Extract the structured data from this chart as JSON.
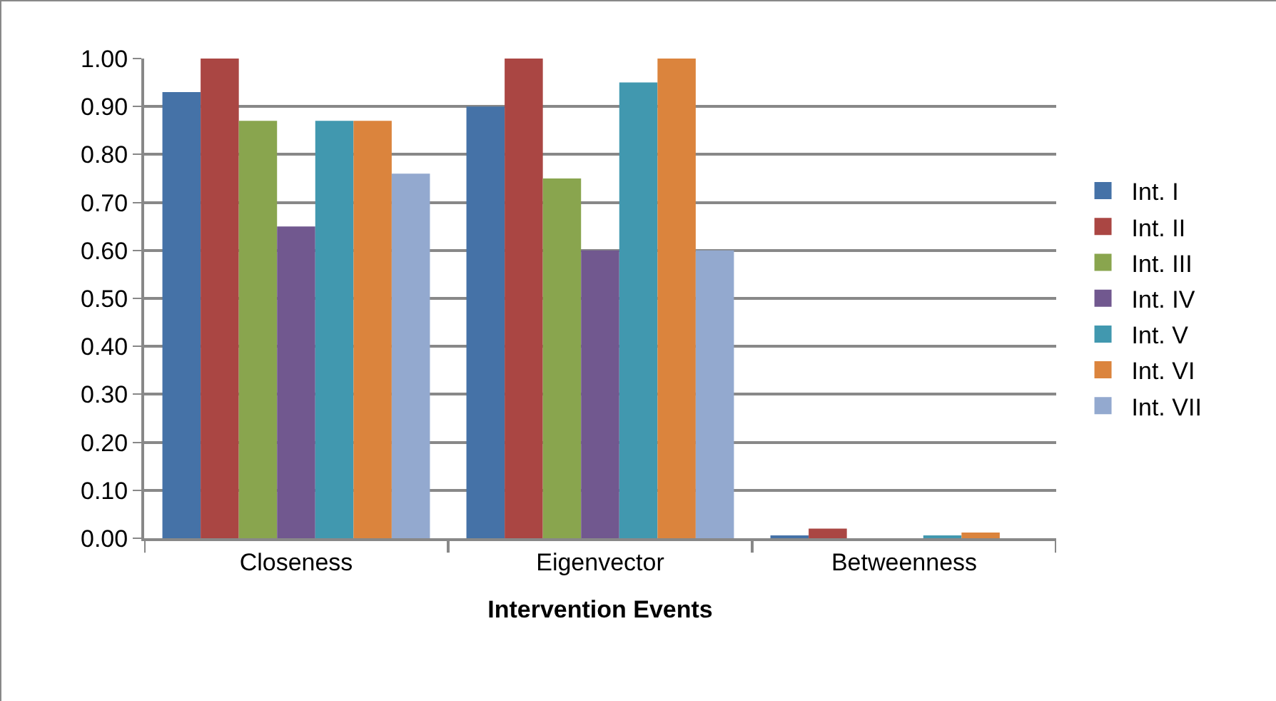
{
  "chart_data": {
    "type": "bar",
    "xlabel": "Intervention Events",
    "categories": [
      "Closeness",
      "Eigenvector",
      "Betweenness"
    ],
    "series": [
      {
        "name": "Int. I",
        "color": "#4572a7",
        "values": [
          0.93,
          0.9,
          0.005
        ]
      },
      {
        "name": "Int. II",
        "color": "#aa4643",
        "values": [
          1.0,
          1.0,
          0.02
        ]
      },
      {
        "name": "Int. III",
        "color": "#89a54e",
        "values": [
          0.87,
          0.75,
          0
        ]
      },
      {
        "name": "Int. IV",
        "color": "#71588f",
        "values": [
          0.65,
          0.6,
          0
        ]
      },
      {
        "name": "Int. V",
        "color": "#4198af",
        "values": [
          0.87,
          0.95,
          0.003
        ]
      },
      {
        "name": "Int. VI",
        "color": "#db843d",
        "values": [
          0.87,
          1.0,
          0.012
        ]
      },
      {
        "name": "Int. VII",
        "color": "#93a9cf",
        "values": [
          0.76,
          0.6,
          0
        ]
      }
    ],
    "ylim": [
      0,
      1
    ],
    "yticks": [
      {
        "value": 0,
        "label": "0.00"
      },
      {
        "value": 0.1,
        "label": "0.10"
      },
      {
        "value": 0.2,
        "label": "0.20"
      },
      {
        "value": 0.3,
        "label": "0.30"
      },
      {
        "value": 0.4,
        "label": "0.40"
      },
      {
        "value": 0.5,
        "label": "0.50"
      },
      {
        "value": 0.6,
        "label": "0.60"
      },
      {
        "value": 0.7,
        "label": "0.70"
      },
      {
        "value": 0.8,
        "label": "0.80"
      },
      {
        "value": 0.9,
        "label": "0.90"
      },
      {
        "value": 1,
        "label": "1.00"
      }
    ],
    "grid": "y",
    "legend": "right"
  }
}
